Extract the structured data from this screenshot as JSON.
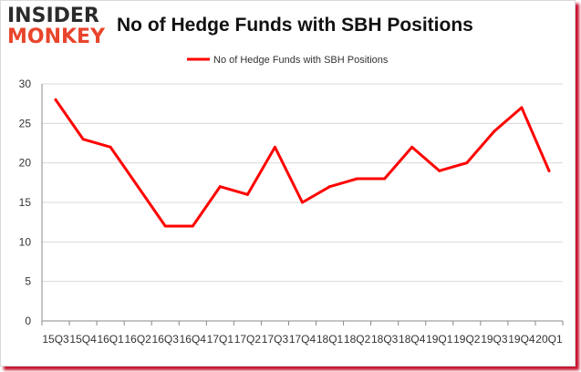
{
  "logo": {
    "line1": "INSIDER",
    "line2": "MONKEY"
  },
  "colors": {
    "series": "#ff0000",
    "grid": "#d9d9d9",
    "axis": "#888888",
    "frame_shadow": "#c8102e"
  },
  "chart_data": {
    "type": "line",
    "title": "No of Hedge Funds with SBH Positions",
    "xlabel": "",
    "ylabel": "",
    "ylim": [
      0,
      30
    ],
    "yticks": [
      0,
      5,
      10,
      15,
      20,
      25,
      30
    ],
    "grid": true,
    "legend": "top-center",
    "categories": [
      "15Q3",
      "15Q4",
      "16Q1",
      "16Q2",
      "16Q3",
      "16Q4",
      "17Q1",
      "17Q2",
      "17Q3",
      "17Q4",
      "18Q1",
      "18Q2",
      "18Q3",
      "18Q4",
      "19Q1",
      "19Q2",
      "19Q3",
      "19Q4",
      "20Q1"
    ],
    "series": [
      {
        "name": "No of Hedge Funds with SBH Positions",
        "values": [
          28,
          23,
          22,
          17,
          12,
          12,
          17,
          16,
          22,
          15,
          17,
          18,
          18,
          22,
          19,
          20,
          24,
          27,
          19
        ]
      }
    ]
  }
}
